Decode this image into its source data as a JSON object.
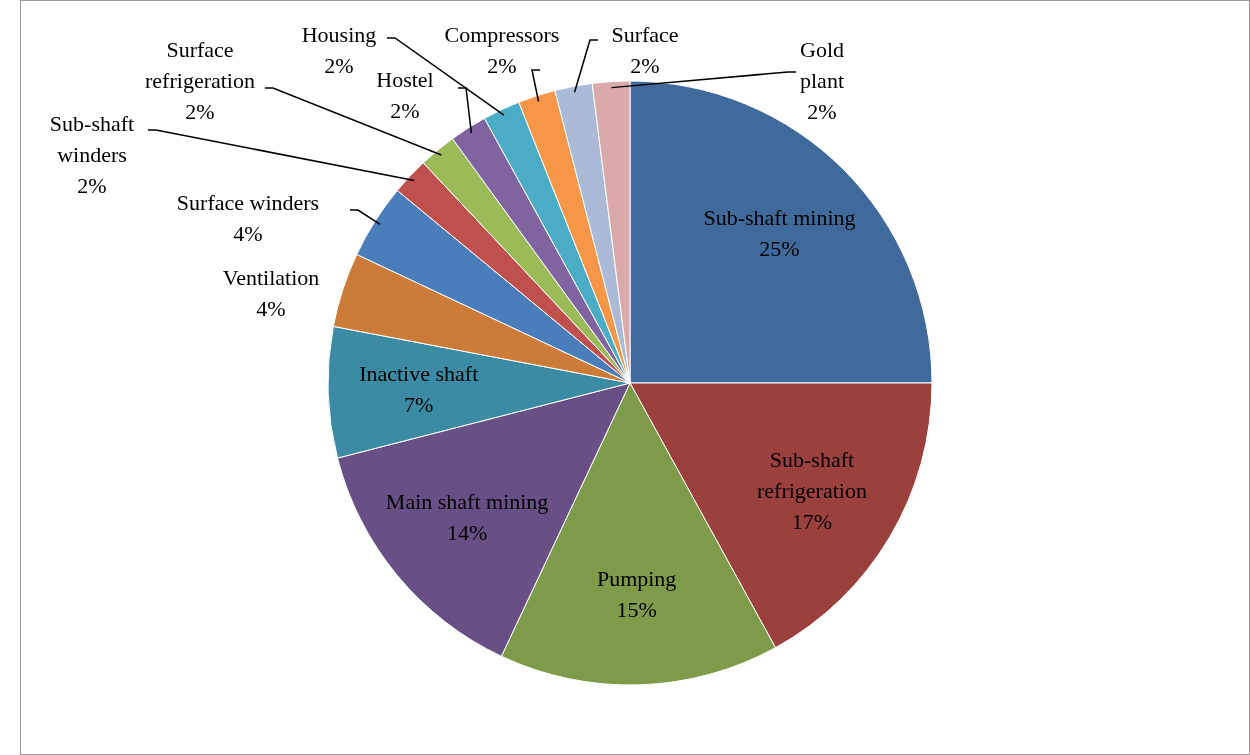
{
  "chart_data": {
    "type": "pie",
    "categories": [
      "Sub-shaft mining",
      "Sub-shaft refrigeration",
      "Pumping",
      "Main shaft mining",
      "Inactive shaft",
      "Ventilation",
      "Surface winders",
      "Sub-shaft winders",
      "Surface refrigeration",
      "Hostel",
      "Housing",
      "Compressors",
      "Surface",
      "Gold plant"
    ],
    "values": [
      25,
      17,
      15,
      14,
      7,
      4,
      4,
      2,
      2,
      2,
      2,
      2,
      2,
      2
    ],
    "colors": [
      "#416a9c",
      "#9c403d",
      "#7e9b49",
      "#684f86",
      "#3a8ba3",
      "#cc7b38",
      "#4a7ebb",
      "#c0504d",
      "#9bbb59",
      "#8064a2",
      "#4bacc6",
      "#f79646",
      "#aabad7",
      "#d9aaa9"
    ],
    "value_labels": [
      "25%",
      "17%",
      "15%",
      "14%",
      "7%",
      "4%",
      "4%",
      "2%",
      "2%",
      "2%",
      "2%",
      "2%",
      "2%",
      "2%"
    ]
  }
}
